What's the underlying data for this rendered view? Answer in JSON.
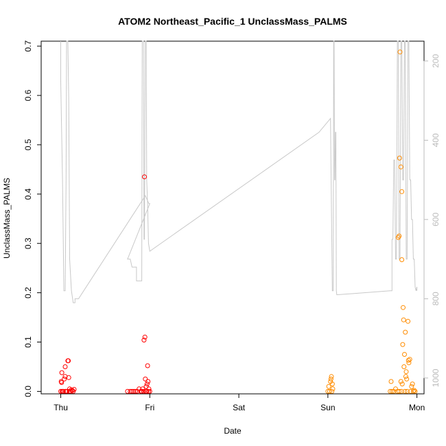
{
  "chart_data": {
    "type": "scatter",
    "title": "ATOM2 Northeast_Pacific_1 UnclassMass_PALMS",
    "xlabel": "Date",
    "ylabel": "UnclassMass_PALMS",
    "x_unit": "days",
    "xlim": [
      -0.22,
      4.08
    ],
    "ylim": [
      -0.005,
      0.71
    ],
    "x_tick_values": [
      0,
      1,
      2,
      3,
      4
    ],
    "x_tick_labels": [
      "Thu",
      "Fri",
      "Sat",
      "Sun",
      "Mon"
    ],
    "y_ticks": [
      0.0,
      0.1,
      0.2,
      0.3,
      0.4,
      0.5,
      0.6,
      0.7
    ],
    "y_tick_labels": [
      "0.0",
      "0.1",
      "0.2",
      "0.3",
      "0.4",
      "0.5",
      "0.6",
      "0.7"
    ],
    "y2_range": [
      1040,
      150
    ],
    "y2_ticks": [
      200,
      400,
      600,
      800,
      1000
    ],
    "y2_tick_labels": [
      "200",
      "400",
      "600",
      "800",
      "1000"
    ],
    "grid": false,
    "series": [
      {
        "color": "#ff0000",
        "marker": "open-circle",
        "points": [
          [
            0.0,
            0.0
          ],
          [
            0.005,
            0.02
          ],
          [
            0.01,
            0.018
          ],
          [
            0.012,
            0.038
          ],
          [
            0.015,
            0.0
          ],
          [
            0.02,
            0.0
          ],
          [
            0.03,
            0.0
          ],
          [
            0.04,
            0.025
          ],
          [
            0.05,
            0.03
          ],
          [
            0.05,
            0.05
          ],
          [
            0.055,
            0.0
          ],
          [
            0.06,
            0.0
          ],
          [
            0.07,
            0.0
          ],
          [
            0.08,
            0.062
          ],
          [
            0.085,
            0.062
          ],
          [
            0.09,
            0.028
          ],
          [
            0.095,
            0.0
          ],
          [
            0.1,
            0.005
          ],
          [
            0.11,
            0.0
          ],
          [
            0.12,
            0.003
          ],
          [
            0.13,
            0.002
          ],
          [
            0.14,
            0.0
          ],
          [
            0.15,
            0.004
          ],
          [
            0.75,
            0.0
          ],
          [
            0.78,
            0.0
          ],
          [
            0.8,
            0.0
          ],
          [
            0.82,
            0.0
          ],
          [
            0.84,
            0.0
          ],
          [
            0.86,
            0.0
          ],
          [
            0.88,
            0.005
          ],
          [
            0.9,
            0.0
          ],
          [
            0.91,
            0.0
          ],
          [
            0.92,
            0.005
          ],
          [
            0.93,
            0.0
          ],
          [
            0.935,
            0.104
          ],
          [
            0.94,
            0.435
          ],
          [
            0.945,
            0.11
          ],
          [
            0.95,
            0.025
          ],
          [
            0.955,
            0.0
          ],
          [
            0.96,
            0.01
          ],
          [
            0.965,
            0.0
          ],
          [
            0.97,
            0.015
          ],
          [
            0.975,
            0.052
          ],
          [
            0.98,
            0.02
          ],
          [
            0.985,
            0.0
          ],
          [
            0.99,
            0.005
          ],
          [
            1.0,
            0.0
          ]
        ]
      },
      {
        "color": "#ff8c00",
        "marker": "open-circle",
        "points": [
          [
            3.0,
            0.0
          ],
          [
            3.01,
            0.01
          ],
          [
            3.02,
            0.0
          ],
          [
            3.03,
            0.02
          ],
          [
            3.035,
            0.025
          ],
          [
            3.04,
            0.03
          ],
          [
            3.045,
            0.0
          ],
          [
            3.05,
            0.015
          ],
          [
            3.055,
            0.005
          ],
          [
            3.7,
            0.0
          ],
          [
            3.71,
            0.02
          ],
          [
            3.72,
            0.0
          ],
          [
            3.74,
            0.0
          ],
          [
            3.76,
            0.005
          ],
          [
            3.78,
            0.0
          ],
          [
            3.79,
            0.312
          ],
          [
            3.8,
            0.315
          ],
          [
            3.8,
            0.0
          ],
          [
            3.805,
            0.473
          ],
          [
            3.81,
            0.688
          ],
          [
            3.82,
            0.02
          ],
          [
            3.82,
            0.455
          ],
          [
            3.825,
            0.0
          ],
          [
            3.83,
            0.405
          ],
          [
            3.83,
            0.267
          ],
          [
            3.835,
            0.015
          ],
          [
            3.84,
            0.095
          ],
          [
            3.845,
            0.17
          ],
          [
            3.85,
            0.145
          ],
          [
            3.855,
            0.05
          ],
          [
            3.86,
            0.075
          ],
          [
            3.865,
            0.0
          ],
          [
            3.87,
            0.12
          ],
          [
            3.875,
            0.03
          ],
          [
            3.88,
            0.04
          ],
          [
            3.885,
            0.025
          ],
          [
            3.89,
            0.0
          ],
          [
            3.9,
            0.142
          ],
          [
            3.905,
            0.063
          ],
          [
            3.91,
            0.058
          ],
          [
            3.92,
            0.065
          ],
          [
            3.93,
            0.0
          ],
          [
            3.94,
            0.01
          ],
          [
            3.95,
            0.015
          ],
          [
            3.96,
            0.0
          ],
          [
            3.97,
            0.002
          ],
          [
            3.98,
            0.0
          ]
        ]
      }
    ],
    "altitude_line": {
      "color": "#c8c8c8",
      "axis": "y2",
      "points": [
        [
          0.0,
          150
        ],
        [
          0.0,
          250
        ],
        [
          0.02,
          500
        ],
        [
          0.035,
          780
        ],
        [
          0.05,
          780
        ],
        [
          0.06,
          500
        ],
        [
          0.065,
          150
        ],
        [
          0.08,
          150
        ],
        [
          0.09,
          300
        ],
        [
          0.1,
          700
        ],
        [
          0.12,
          780
        ],
        [
          0.14,
          810
        ],
        [
          0.16,
          810
        ],
        [
          0.16,
          800
        ],
        [
          0.2,
          800
        ],
        [
          0.95,
          540
        ],
        [
          0.99,
          560
        ],
        [
          1.0,
          560
        ],
        [
          0.75,
          700
        ],
        [
          0.78,
          700
        ],
        [
          0.8,
          720
        ],
        [
          0.82,
          720
        ],
        [
          0.85,
          720
        ],
        [
          0.85,
          755
        ],
        [
          0.9,
          755
        ],
        [
          0.91,
          755
        ],
        [
          0.915,
          150
        ],
        [
          0.93,
          150
        ],
        [
          0.935,
          650
        ],
        [
          0.94,
          650
        ],
        [
          0.95,
          150
        ],
        [
          0.96,
          150
        ],
        [
          0.965,
          500
        ],
        [
          0.975,
          560
        ],
        [
          0.985,
          660
        ],
        [
          1.0,
          680
        ],
        [
          2.9,
          380
        ],
        [
          3.03,
          345
        ],
        [
          3.05,
          780
        ],
        [
          3.06,
          780
        ],
        [
          3.065,
          150
        ],
        [
          3.07,
          150
        ],
        [
          3.075,
          500
        ],
        [
          3.08,
          500
        ],
        [
          3.085,
          380
        ],
        [
          3.09,
          380
        ],
        [
          3.095,
          780
        ],
        [
          3.1,
          790
        ],
        [
          3.7,
          780
        ],
        [
          3.72,
          780
        ],
        [
          3.72,
          650
        ],
        [
          3.73,
          650
        ],
        [
          3.74,
          450
        ],
        [
          3.75,
          450
        ],
        [
          3.76,
          700
        ],
        [
          3.77,
          700
        ],
        [
          3.78,
          150
        ],
        [
          3.79,
          150
        ],
        [
          3.8,
          700
        ],
        [
          3.81,
          700
        ],
        [
          3.82,
          150
        ],
        [
          3.83,
          150
        ],
        [
          3.84,
          500
        ],
        [
          3.85,
          500
        ],
        [
          3.86,
          150
        ],
        [
          3.87,
          150
        ],
        [
          3.88,
          700
        ],
        [
          3.89,
          700
        ],
        [
          3.9,
          150
        ],
        [
          3.91,
          150
        ],
        [
          3.92,
          500
        ],
        [
          3.93,
          500
        ],
        [
          3.94,
          600
        ],
        [
          3.95,
          600
        ],
        [
          3.96,
          700
        ],
        [
          3.97,
          700
        ],
        [
          3.98,
          770
        ],
        [
          3.99,
          780
        ],
        [
          4.0,
          770
        ],
        [
          4.0,
          780
        ]
      ]
    }
  }
}
